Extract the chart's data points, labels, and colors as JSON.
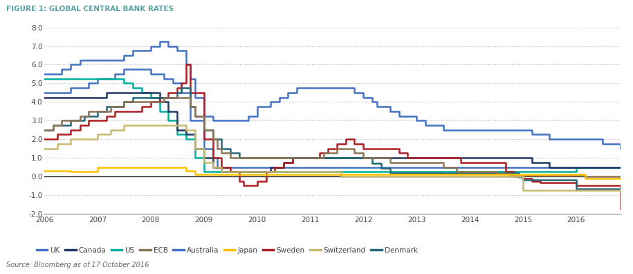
{
  "title": "FIGURE 1: GLOBAL CENTRAL BANK RATES",
  "source": "Source: Bloomberg as of 17 October 2016",
  "ylim": [
    -2.0,
    8.0
  ],
  "yticks": [
    -2.0,
    -1.0,
    0.0,
    1.0,
    2.0,
    3.0,
    4.0,
    5.0,
    6.0,
    7.0,
    8.0
  ],
  "xlim": [
    2006,
    2016.83
  ],
  "xticks": [
    2006,
    2007,
    2008,
    2009,
    2010,
    2011,
    2012,
    2013,
    2014,
    2015,
    2016
  ],
  "title_color": "#5ba3a0",
  "background_color": "#ffffff",
  "series": {
    "UK": {
      "color": "#4472c4",
      "data": [
        [
          2006.0,
          4.5
        ],
        [
          2006.5,
          4.75
        ],
        [
          2006.83,
          5.0
        ],
        [
          2007.0,
          5.25
        ],
        [
          2007.33,
          5.5
        ],
        [
          2007.5,
          5.75
        ],
        [
          2008.0,
          5.5
        ],
        [
          2008.25,
          5.25
        ],
        [
          2008.42,
          5.0
        ],
        [
          2008.58,
          4.5
        ],
        [
          2008.75,
          3.0
        ],
        [
          2009.0,
          1.5
        ],
        [
          2009.17,
          1.0
        ],
        [
          2009.25,
          0.5
        ],
        [
          2009.5,
          0.5
        ],
        [
          2016.83,
          0.5
        ]
      ]
    },
    "Canada": {
      "color": "#1f3864",
      "data": [
        [
          2006.0,
          4.25
        ],
        [
          2006.83,
          4.25
        ],
        [
          2007.0,
          4.25
        ],
        [
          2007.17,
          4.5
        ],
        [
          2008.0,
          4.5
        ],
        [
          2008.17,
          4.0
        ],
        [
          2008.33,
          3.5
        ],
        [
          2008.5,
          2.5
        ],
        [
          2008.67,
          2.25
        ],
        [
          2008.83,
          1.5
        ],
        [
          2009.0,
          1.0
        ],
        [
          2009.17,
          0.5
        ],
        [
          2009.33,
          0.25
        ],
        [
          2010.0,
          0.25
        ],
        [
          2010.25,
          0.5
        ],
        [
          2010.5,
          0.75
        ],
        [
          2010.67,
          1.0
        ],
        [
          2011.0,
          1.0
        ],
        [
          2015.0,
          1.0
        ],
        [
          2015.17,
          0.75
        ],
        [
          2015.5,
          0.5
        ],
        [
          2015.5,
          0.5
        ],
        [
          2016.83,
          0.5
        ]
      ]
    },
    "US": {
      "color": "#00b0a0",
      "data": [
        [
          2006.0,
          5.25
        ],
        [
          2007.42,
          5.25
        ],
        [
          2007.5,
          5.0
        ],
        [
          2007.67,
          4.75
        ],
        [
          2007.83,
          4.5
        ],
        [
          2008.0,
          4.25
        ],
        [
          2008.17,
          3.5
        ],
        [
          2008.33,
          3.0
        ],
        [
          2008.5,
          2.25
        ],
        [
          2008.67,
          2.0
        ],
        [
          2008.83,
          1.0
        ],
        [
          2009.0,
          0.25
        ],
        [
          2009.17,
          0.25
        ],
        [
          2015.83,
          0.25
        ],
        [
          2016.0,
          0.5
        ],
        [
          2016.83,
          0.5
        ]
      ]
    },
    "ECB": {
      "color": "#8b7355",
      "data": [
        [
          2006.0,
          2.5
        ],
        [
          2006.17,
          2.75
        ],
        [
          2006.33,
          3.0
        ],
        [
          2006.67,
          3.25
        ],
        [
          2006.83,
          3.5
        ],
        [
          2007.0,
          3.5
        ],
        [
          2007.25,
          3.75
        ],
        [
          2007.5,
          4.0
        ],
        [
          2008.0,
          4.0
        ],
        [
          2008.25,
          4.25
        ],
        [
          2008.67,
          4.25
        ],
        [
          2008.75,
          3.75
        ],
        [
          2008.83,
          3.25
        ],
        [
          2009.0,
          2.5
        ],
        [
          2009.17,
          2.0
        ],
        [
          2009.25,
          1.5
        ],
        [
          2009.33,
          1.25
        ],
        [
          2009.5,
          1.0
        ],
        [
          2011.0,
          1.0
        ],
        [
          2011.25,
          1.25
        ],
        [
          2011.5,
          1.5
        ],
        [
          2011.83,
          1.25
        ],
        [
          2012.0,
          1.0
        ],
        [
          2012.5,
          0.75
        ],
        [
          2013.5,
          0.5
        ],
        [
          2013.75,
          0.25
        ],
        [
          2014.5,
          0.15
        ],
        [
          2014.75,
          0.05
        ],
        [
          2016.0,
          0.05
        ],
        [
          2016.17,
          0.0
        ],
        [
          2016.83,
          0.0
        ]
      ]
    },
    "Australia": {
      "color": "#4472c4",
      "data": [
        [
          2006.0,
          5.5
        ],
        [
          2006.33,
          5.75
        ],
        [
          2006.5,
          6.0
        ],
        [
          2006.67,
          6.25
        ],
        [
          2007.0,
          6.25
        ],
        [
          2007.5,
          6.5
        ],
        [
          2007.67,
          6.75
        ],
        [
          2008.0,
          7.0
        ],
        [
          2008.17,
          7.25
        ],
        [
          2008.33,
          7.0
        ],
        [
          2008.5,
          6.75
        ],
        [
          2008.67,
          6.0
        ],
        [
          2008.75,
          5.25
        ],
        [
          2008.83,
          4.25
        ],
        [
          2009.0,
          3.25
        ],
        [
          2009.17,
          3.0
        ],
        [
          2009.75,
          3.0
        ],
        [
          2009.83,
          3.25
        ],
        [
          2010.0,
          3.75
        ],
        [
          2010.25,
          4.0
        ],
        [
          2010.42,
          4.25
        ],
        [
          2010.58,
          4.5
        ],
        [
          2010.75,
          4.75
        ],
        [
          2011.0,
          4.75
        ],
        [
          2011.75,
          4.75
        ],
        [
          2011.83,
          4.5
        ],
        [
          2012.0,
          4.25
        ],
        [
          2012.17,
          4.0
        ],
        [
          2012.25,
          3.75
        ],
        [
          2012.5,
          3.5
        ],
        [
          2012.67,
          3.25
        ],
        [
          2013.0,
          3.0
        ],
        [
          2013.17,
          2.75
        ],
        [
          2013.5,
          2.5
        ],
        [
          2014.0,
          2.5
        ],
        [
          2015.0,
          2.5
        ],
        [
          2015.17,
          2.25
        ],
        [
          2015.5,
          2.0
        ],
        [
          2016.0,
          2.0
        ],
        [
          2016.5,
          1.75
        ],
        [
          2016.83,
          1.5
        ]
      ]
    },
    "Japan": {
      "color": "#ffc000",
      "data": [
        [
          2006.0,
          0.3
        ],
        [
          2006.42,
          0.3
        ],
        [
          2006.5,
          0.25
        ],
        [
          2006.75,
          0.25
        ],
        [
          2007.0,
          0.5
        ],
        [
          2008.0,
          0.5
        ],
        [
          2008.67,
          0.3
        ],
        [
          2008.83,
          0.1
        ],
        [
          2009.0,
          0.1
        ],
        [
          2016.0,
          0.1
        ],
        [
          2016.17,
          -0.1
        ],
        [
          2016.83,
          -0.1
        ]
      ]
    },
    "Sweden": {
      "color": "#ae1f23",
      "data": [
        [
          2006.0,
          2.0
        ],
        [
          2006.25,
          2.25
        ],
        [
          2006.5,
          2.5
        ],
        [
          2006.67,
          2.75
        ],
        [
          2006.83,
          3.0
        ],
        [
          2007.0,
          3.0
        ],
        [
          2007.17,
          3.25
        ],
        [
          2007.33,
          3.5
        ],
        [
          2007.75,
          3.5
        ],
        [
          2007.83,
          3.75
        ],
        [
          2008.0,
          4.0
        ],
        [
          2008.17,
          4.25
        ],
        [
          2008.33,
          4.5
        ],
        [
          2008.5,
          4.75
        ],
        [
          2008.58,
          5.0
        ],
        [
          2008.67,
          6.0
        ],
        [
          2008.75,
          4.5
        ],
        [
          2009.0,
          2.0
        ],
        [
          2009.17,
          1.0
        ],
        [
          2009.33,
          0.5
        ],
        [
          2009.5,
          0.25
        ],
        [
          2009.67,
          -0.25
        ],
        [
          2009.75,
          -0.5
        ],
        [
          2010.0,
          -0.25
        ],
        [
          2010.17,
          0.25
        ],
        [
          2010.33,
          0.5
        ],
        [
          2010.5,
          0.75
        ],
        [
          2010.67,
          1.0
        ],
        [
          2011.0,
          1.0
        ],
        [
          2011.17,
          1.25
        ],
        [
          2011.33,
          1.5
        ],
        [
          2011.5,
          1.75
        ],
        [
          2011.67,
          2.0
        ],
        [
          2011.75,
          2.0
        ],
        [
          2011.83,
          1.75
        ],
        [
          2012.0,
          1.5
        ],
        [
          2012.5,
          1.5
        ],
        [
          2012.67,
          1.25
        ],
        [
          2012.83,
          1.0
        ],
        [
          2013.0,
          1.0
        ],
        [
          2013.75,
          1.0
        ],
        [
          2013.83,
          0.75
        ],
        [
          2014.0,
          0.75
        ],
        [
          2014.5,
          0.75
        ],
        [
          2014.67,
          0.25
        ],
        [
          2014.83,
          0.0
        ],
        [
          2015.0,
          0.0
        ],
        [
          2015.0,
          -0.1
        ],
        [
          2015.17,
          -0.25
        ],
        [
          2015.33,
          -0.35
        ],
        [
          2015.5,
          -0.35
        ],
        [
          2016.0,
          -0.5
        ],
        [
          2016.83,
          -1.75
        ]
      ]
    },
    "Switzerland": {
      "color": "#c8b870",
      "data": [
        [
          2006.0,
          1.5
        ],
        [
          2006.25,
          1.75
        ],
        [
          2006.5,
          2.0
        ],
        [
          2007.0,
          2.25
        ],
        [
          2007.25,
          2.5
        ],
        [
          2007.5,
          2.75
        ],
        [
          2008.0,
          2.75
        ],
        [
          2008.67,
          2.5
        ],
        [
          2008.83,
          1.5
        ],
        [
          2009.0,
          0.75
        ],
        [
          2009.17,
          0.5
        ],
        [
          2009.33,
          0.25
        ],
        [
          2009.5,
          0.25
        ],
        [
          2011.5,
          0.25
        ],
        [
          2011.58,
          0.0
        ],
        [
          2014.83,
          0.0
        ],
        [
          2015.0,
          -0.75
        ],
        [
          2016.83,
          -0.75
        ]
      ]
    },
    "Denmark": {
      "color": "#216778",
      "data": [
        [
          2006.0,
          2.5
        ],
        [
          2006.17,
          2.75
        ],
        [
          2006.5,
          3.0
        ],
        [
          2006.75,
          3.25
        ],
        [
          2007.0,
          3.5
        ],
        [
          2007.17,
          3.75
        ],
        [
          2007.5,
          4.0
        ],
        [
          2007.67,
          4.25
        ],
        [
          2008.0,
          4.25
        ],
        [
          2008.5,
          4.5
        ],
        [
          2008.58,
          4.75
        ],
        [
          2008.75,
          3.75
        ],
        [
          2008.83,
          3.25
        ],
        [
          2009.0,
          2.5
        ],
        [
          2009.17,
          2.0
        ],
        [
          2009.33,
          1.5
        ],
        [
          2009.5,
          1.25
        ],
        [
          2009.67,
          1.0
        ],
        [
          2010.0,
          1.0
        ],
        [
          2012.0,
          1.0
        ],
        [
          2012.17,
          0.7
        ],
        [
          2012.33,
          0.45
        ],
        [
          2012.5,
          0.2
        ],
        [
          2014.83,
          0.2
        ],
        [
          2014.92,
          -0.05
        ],
        [
          2015.0,
          -0.2
        ],
        [
          2016.0,
          -0.65
        ],
        [
          2016.83,
          -0.65
        ]
      ]
    }
  },
  "legend_order": [
    "UK",
    "Canada",
    "US",
    "ECB",
    "Australia",
    "Japan",
    "Sweden",
    "Switzerland",
    "Denmark"
  ]
}
